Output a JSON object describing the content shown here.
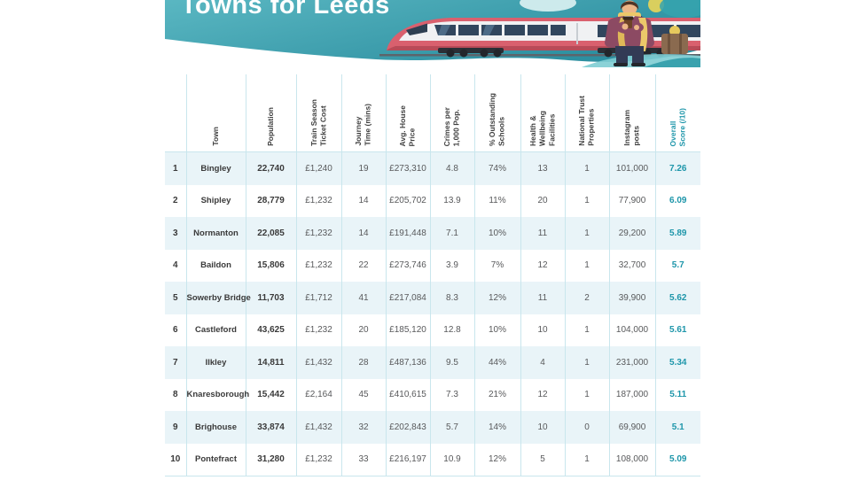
{
  "header": {
    "title": "Towns for Leeds"
  },
  "colors": {
    "banner_gradient_start": "#5ab7c2",
    "banner_gradient_end": "#2d8fa0",
    "accent_teal": "#1e96aa",
    "row_stripe": "#e9f4f8",
    "grid_border": "#c9e6ed",
    "train_red": "#d9606e",
    "train_body": "#f0f1f3"
  },
  "chart_data": {
    "type": "table",
    "title": "Towns for Leeds",
    "columns": [
      "",
      "Town",
      "Population",
      "Train Season\nTicket Cost",
      "Journey\nTime (mins)",
      "Avg. House\nPrice",
      "Crimes per\n1,000 Pop.",
      "% Outstanding\nSchools",
      "Health &\nWellbeing\nFacilities",
      "National Trust\nProperties",
      "Instagram\nposts",
      "Overall\nScore (/10)"
    ],
    "rows": [
      [
        "1",
        "Bingley",
        "22,740",
        "£1,240",
        "19",
        "£273,310",
        "4.8",
        "74%",
        "13",
        "1",
        "101,000",
        "7.26"
      ],
      [
        "2",
        "Shipley",
        "28,779",
        "£1,232",
        "14",
        "£205,702",
        "13.9",
        "11%",
        "20",
        "1",
        "77,900",
        "6.09"
      ],
      [
        "3",
        "Normanton",
        "22,085",
        "£1,232",
        "14",
        "£191,448",
        "7.1",
        "10%",
        "11",
        "1",
        "29,200",
        "5.89"
      ],
      [
        "4",
        "Baildon",
        "15,806",
        "£1,232",
        "22",
        "£273,746",
        "3.9",
        "7%",
        "12",
        "1",
        "32,700",
        "5.7"
      ],
      [
        "5",
        "Sowerby Bridge",
        "11,703",
        "£1,712",
        "41",
        "£217,084",
        "8.3",
        "12%",
        "11",
        "2",
        "39,900",
        "5.62"
      ],
      [
        "6",
        "Castleford",
        "43,625",
        "£1,232",
        "20",
        "£185,120",
        "12.8",
        "10%",
        "10",
        "1",
        "104,000",
        "5.61"
      ],
      [
        "7",
        "Ilkley",
        "14,811",
        "£1,432",
        "28",
        "£487,136",
        "9.5",
        "44%",
        "4",
        "1",
        "231,000",
        "5.34"
      ],
      [
        "8",
        "Knaresborough",
        "15,442",
        "£2,164",
        "45",
        "£410,615",
        "7.3",
        "21%",
        "12",
        "1",
        "187,000",
        "5.11"
      ],
      [
        "9",
        "Brighouse",
        "33,874",
        "£1,432",
        "32",
        "£202,843",
        "5.7",
        "14%",
        "10",
        "0",
        "69,900",
        "5.1"
      ],
      [
        "10",
        "Pontefract",
        "31,280",
        "£1,232",
        "33",
        "£216,197",
        "10.9",
        "12%",
        "5",
        "1",
        "108,000",
        "5.09"
      ]
    ]
  }
}
